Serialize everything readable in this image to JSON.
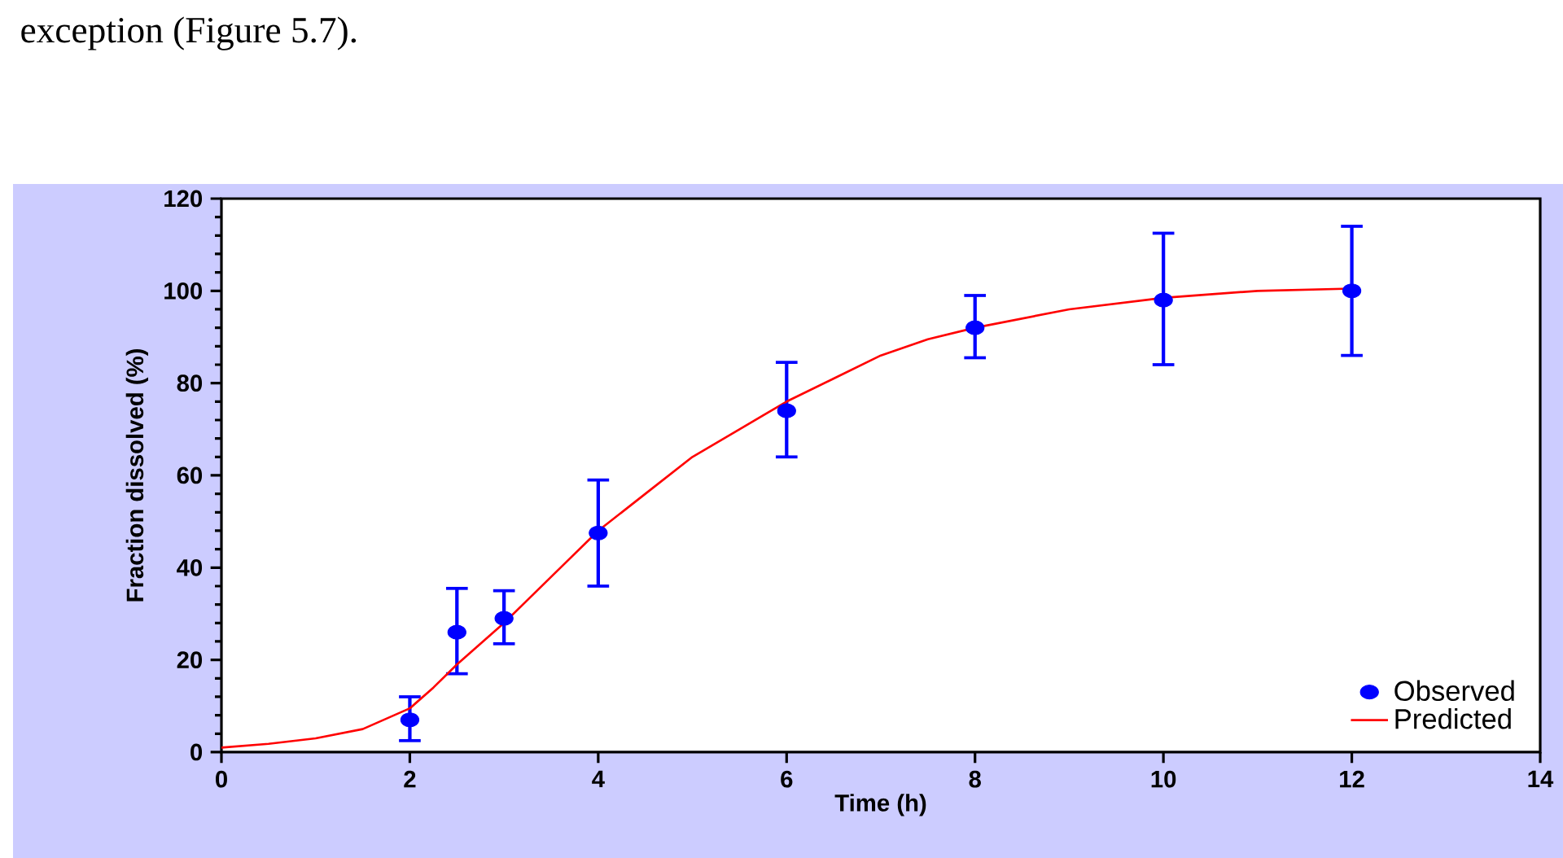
{
  "chart_data": {
    "type": "line",
    "xlabel": "Time (h)",
    "ylabel": "Fraction dissolved (%)",
    "annotations": [
      "exception (Figure 5.7)."
    ],
    "xlim": [
      0,
      14
    ],
    "xticks": [
      0,
      2,
      4,
      6,
      8,
      10,
      12,
      14
    ],
    "ylim": [
      0,
      120
    ],
    "yticks": [
      0,
      20,
      40,
      60,
      80,
      100,
      120
    ],
    "legend": "bottom right",
    "series": [
      {
        "name": "Observed",
        "type": "scatter",
        "color": "#0000ff",
        "marker": "circle",
        "x": [
          2,
          2.5,
          3,
          4,
          6,
          8,
          10,
          12
        ],
        "values": [
          7,
          26,
          29,
          47.5,
          74,
          92,
          98,
          100
        ],
        "errors": [
          [
            2.5,
            12
          ],
          [
            17,
            35.5
          ],
          [
            23.5,
            35
          ],
          [
            36,
            59
          ],
          [
            64,
            84.5
          ],
          [
            85.5,
            99
          ],
          [
            84,
            112.5
          ],
          [
            86,
            114
          ]
        ]
      },
      {
        "name": "Predicted",
        "color": "#ff0000",
        "marker": "none",
        "line_style": "solid",
        "x": [
          0,
          0.5,
          1,
          1.5,
          2,
          2.25,
          2.5,
          3,
          3.5,
          4,
          4.5,
          5,
          5.5,
          6,
          6.5,
          7,
          7.5,
          8,
          9,
          10,
          11,
          12
        ],
        "values": [
          1,
          1.8,
          3,
          5,
          9.5,
          14,
          19,
          28,
          38,
          48,
          56,
          64,
          70,
          76,
          81,
          86,
          89.5,
          92,
          96,
          98.5,
          100,
          100.5
        ]
      }
    ]
  }
}
